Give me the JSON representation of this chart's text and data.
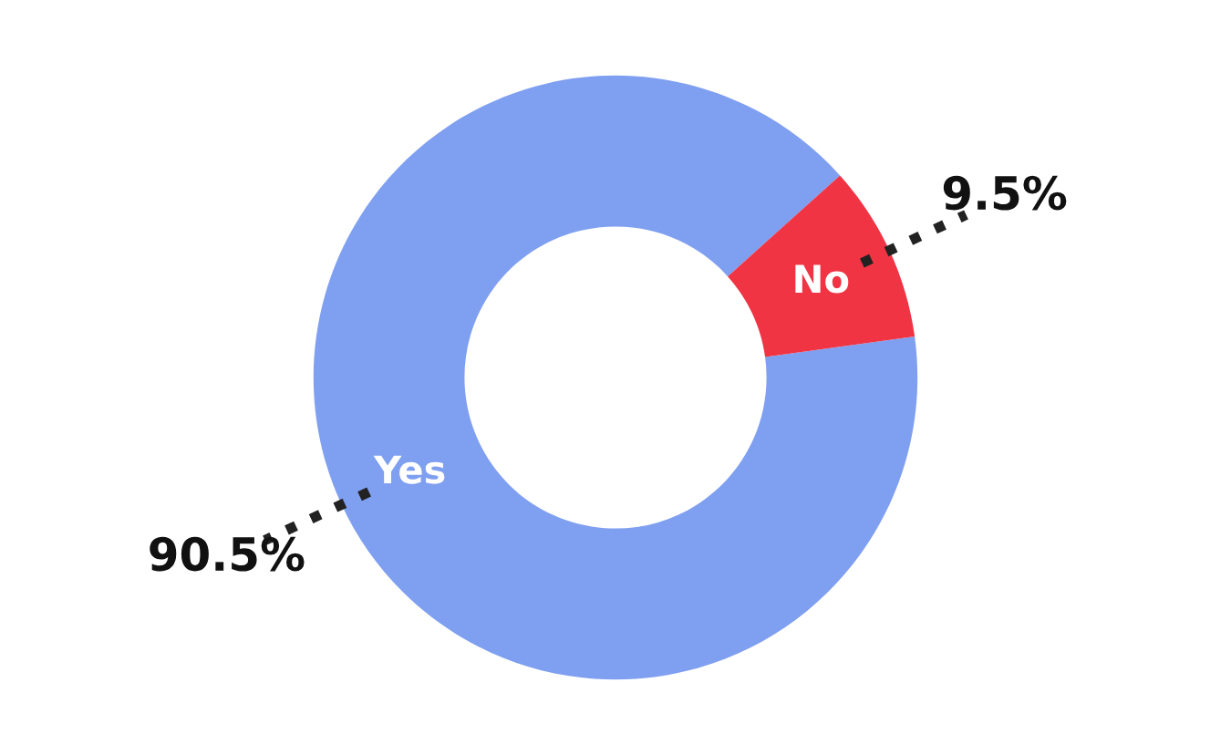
{
  "chart_data": {
    "type": "donut",
    "categories": [
      "Yes",
      "No"
    ],
    "values": [
      90.5,
      9.5
    ],
    "colors": [
      "#7f9ff0",
      "#f03444"
    ],
    "value_labels": [
      "90.5%",
      "9.5%"
    ],
    "legend": false
  }
}
